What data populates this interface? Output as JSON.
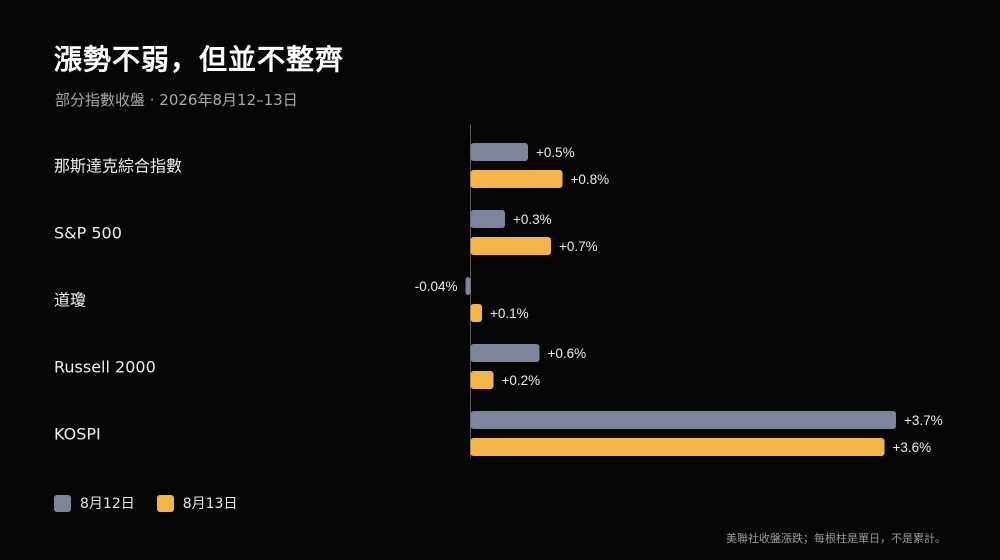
{
  "header": {
    "title": "漲勢不弱，但並不整齊",
    "subtitle": "部分指數收盤 · 2026年8月12–13日"
  },
  "footnote": "美聯社收盤漲跌；每根柱是單日，不是累計。",
  "colors": {
    "background": "#060606",
    "series_1": "#7e8599",
    "series_2": "#f4b548",
    "axis": "#5a5a5a"
  },
  "chart_data": {
    "type": "bar",
    "orientation": "horizontal",
    "unit": "%",
    "categories": [
      "那斯達克綜合指數",
      "S&P 500",
      "道瓊",
      "Russell 2000",
      "KOSPI"
    ],
    "series": [
      {
        "name": "8月12日",
        "color": "#7e8599",
        "values": [
          0.5,
          0.3,
          -0.04,
          0.6,
          3.7
        ],
        "labels": [
          "+0.5%",
          "+0.3%",
          "-0.04%",
          "+0.6%",
          "+3.7%"
        ]
      },
      {
        "name": "8月13日",
        "color": "#f4b548",
        "values": [
          0.8,
          0.7,
          0.1,
          0.2,
          3.6
        ],
        "labels": [
          "+0.8%",
          "+0.7%",
          "+0.1%",
          "+0.2%",
          "+3.6%"
        ]
      }
    ],
    "grid": false,
    "legend_position": "bottom-left"
  }
}
